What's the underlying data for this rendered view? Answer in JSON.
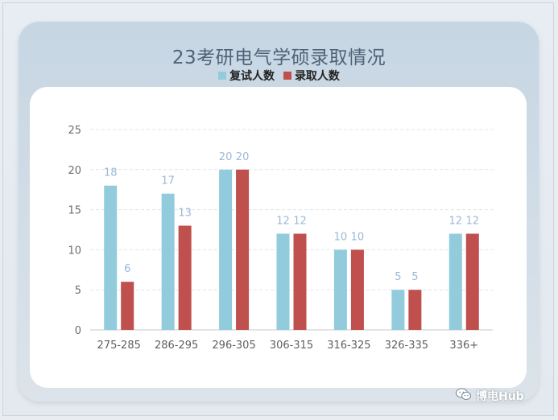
{
  "chart_data": {
    "type": "bar",
    "title": "23考研电气学硕录取情况",
    "categories": [
      "275-285",
      "286-295",
      "296-305",
      "306-315",
      "316-325",
      "326-335",
      "336+"
    ],
    "series": [
      {
        "name": "复试人数",
        "color": "#92ccdc",
        "values": [
          18,
          17,
          20,
          12,
          10,
          5,
          12
        ]
      },
      {
        "name": "录取人数",
        "color": "#c0504d",
        "values": [
          6,
          13,
          20,
          12,
          10,
          5,
          12
        ]
      }
    ],
    "ylim": [
      0,
      25
    ],
    "yticks": [
      0,
      5,
      10,
      15,
      20,
      25
    ],
    "grid": true,
    "legend_position": "top-center",
    "data_label_color": "#9bb8d6"
  },
  "watermark": {
    "icon": "wechat-icon",
    "text": "博电Hub"
  }
}
